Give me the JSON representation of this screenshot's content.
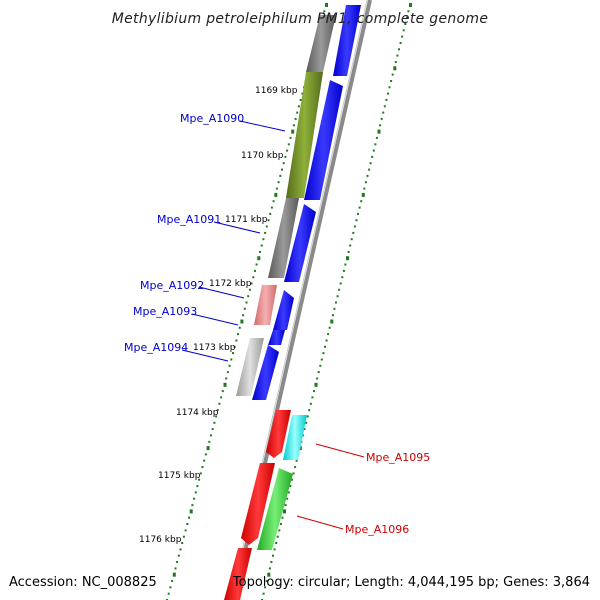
{
  "title": "Methylibium petroleiphilum PM1, complete genome",
  "accession_text": "Accession: NC_008825",
  "topology_text": "Topology: circular; Length: 4,044,195 bp; Genes: 3,864",
  "colors": {
    "backbone": "#888888",
    "forward_strand_cds": "#0000ee",
    "tick_dots": "#1f7a1f",
    "label_left": "#0000cc",
    "label_right": "#cc0000",
    "gene_olive": "#6b8e23",
    "gene_gray": "#707070",
    "gene_pink": "#e88a8a",
    "gene_lightgray": "#bdbdbd",
    "gene_red": "#ee0000",
    "gene_cyan": "#00eeee",
    "gene_green": "#33cc33"
  },
  "ticks": [
    {
      "label": "1169 kbp"
    },
    {
      "label": "1170 kbp"
    },
    {
      "label": "1171 kbp"
    },
    {
      "label": "1172 kbp"
    },
    {
      "label": "1173 kbp"
    },
    {
      "label": "1174 kbp"
    },
    {
      "label": "1175 kbp"
    },
    {
      "label": "1176 kbp"
    }
  ],
  "gene_labels": [
    {
      "id": "Mpe_A1090",
      "side": "left"
    },
    {
      "id": "Mpe_A1091",
      "side": "left"
    },
    {
      "id": "Mpe_A1092",
      "side": "left"
    },
    {
      "id": "Mpe_A1093",
      "side": "left"
    },
    {
      "id": "Mpe_A1094",
      "side": "left"
    },
    {
      "id": "Mpe_A1095",
      "side": "right"
    },
    {
      "id": "Mpe_A1096",
      "side": "right"
    }
  ]
}
